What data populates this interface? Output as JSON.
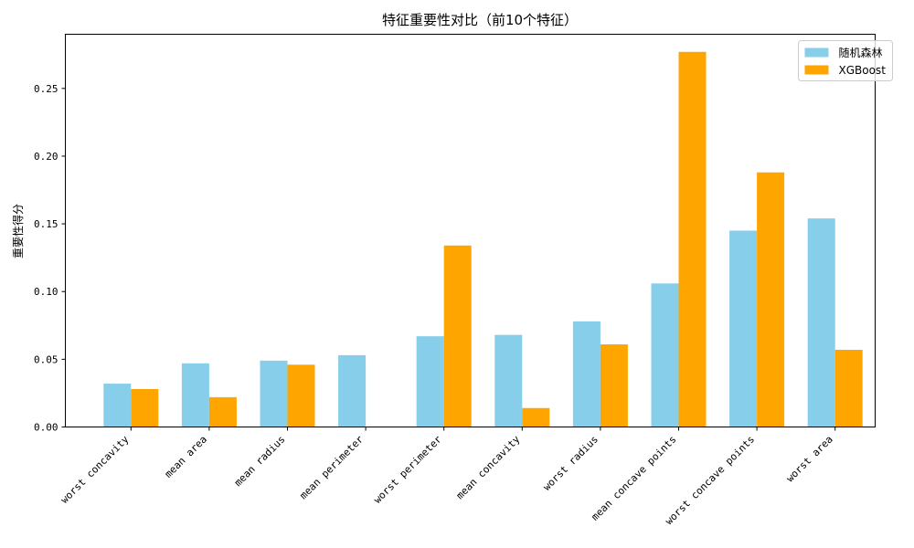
{
  "chart_data": {
    "type": "bar",
    "title": "特征重要性对比（前10个特征）",
    "xlabel": "",
    "ylabel": "重要性得分",
    "ylim": [
      0,
      0.29
    ],
    "yticks": [
      0.0,
      0.05,
      0.1,
      0.15,
      0.2,
      0.25
    ],
    "grid": false,
    "legend_position": "top-right",
    "categories": [
      "worst concavity",
      "mean area",
      "mean radius",
      "mean perimeter",
      "worst perimeter",
      "mean concavity",
      "worst radius",
      "mean concave points",
      "worst concave points",
      "worst area"
    ],
    "series": [
      {
        "name": "随机森林",
        "color": "#87CEEB",
        "values": [
          0.032,
          0.047,
          0.049,
          0.053,
          0.067,
          0.068,
          0.078,
          0.106,
          0.145,
          0.154
        ]
      },
      {
        "name": "XGBoost",
        "color": "#FFA500",
        "values": [
          0.028,
          0.022,
          0.046,
          0.0,
          0.134,
          0.014,
          0.061,
          0.277,
          0.188,
          0.057
        ]
      }
    ]
  }
}
